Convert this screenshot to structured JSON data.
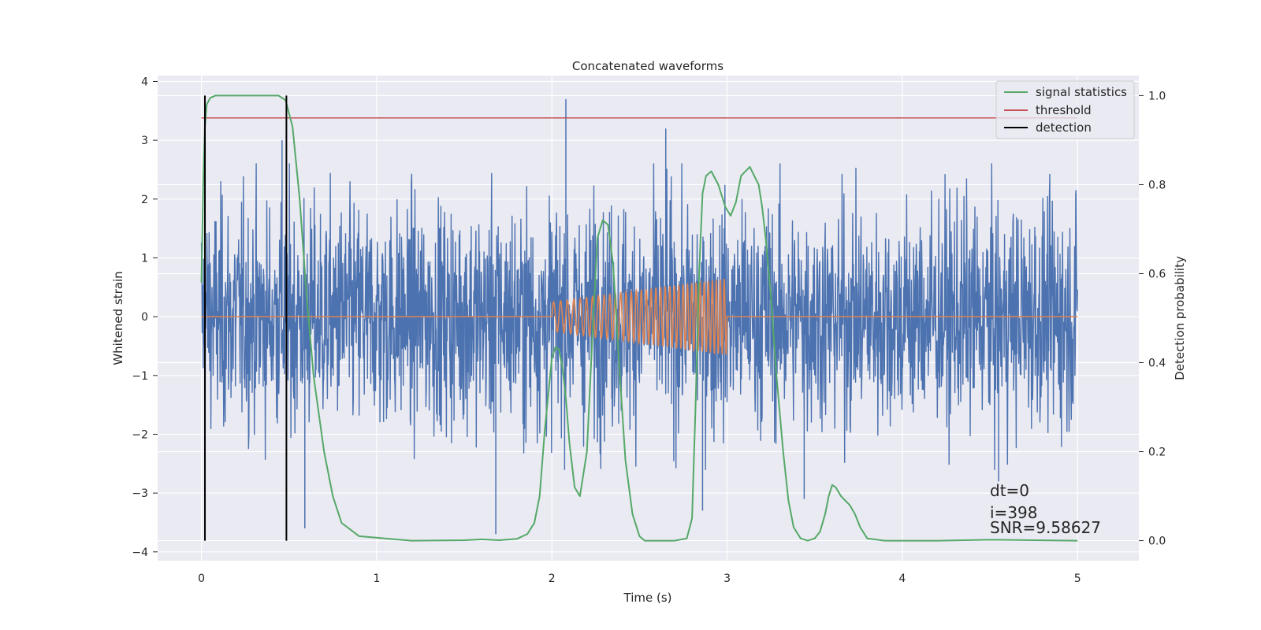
{
  "chart_data": {
    "type": "line",
    "title": "Concatenated waveforms",
    "xlabel": "Time (s)",
    "ylabel": "Whitened strain",
    "y2label": "Detection probability",
    "xlim": [
      -0.25,
      5.35
    ],
    "ylim": [
      -4.15,
      4.1
    ],
    "y2lim": [
      -0.045,
      1.045
    ],
    "xticks": [
      0,
      1,
      2,
      3,
      4,
      5
    ],
    "xtick_labels": [
      "0",
      "1",
      "2",
      "3",
      "4",
      "5"
    ],
    "yticks": [
      -4,
      -3,
      -2,
      -1,
      0,
      1,
      2,
      3,
      4
    ],
    "ytick_labels": [
      "−4",
      "−3",
      "−2",
      "−1",
      "0",
      "1",
      "2",
      "3",
      "4"
    ],
    "y2ticks": [
      0.0,
      0.2,
      0.4,
      0.6,
      0.8,
      1.0
    ],
    "y2tick_labels": [
      "0.0",
      "0.2",
      "0.4",
      "0.6",
      "0.8",
      "1.0"
    ],
    "grid": true,
    "legend_position": "top-right",
    "series": [
      {
        "key": "strain",
        "axis": "left",
        "color": "#4c72b0",
        "description": "whitened noisy strain, roughly Gaussian with std ~0.95, t in [0, 5] s",
        "x_range": [
          0,
          5
        ],
        "noise_std": 0.95,
        "spikes": [
          [
            2.08,
            3.7
          ],
          [
            1.68,
            -3.7
          ],
          [
            0.46,
            3.0
          ],
          [
            2.65,
            3.2
          ],
          [
            0.59,
            -3.6
          ],
          [
            3.44,
            -3.1
          ],
          [
            4.55,
            -2.8
          ],
          [
            2.86,
            -3.3
          ]
        ]
      },
      {
        "key": "injected-signal",
        "axis": "left",
        "color": "#dd8452",
        "description": "chirp injected between 2 s and 3 s",
        "t_start": 2.0,
        "t_end": 3.0,
        "amp_start": 0.25,
        "amp_end": 0.65,
        "cycles": 35,
        "x_range": [
          0,
          5
        ]
      },
      {
        "key": "signal-statistics",
        "name": "signal statistics",
        "axis": "right",
        "color": "#55a868",
        "x": [
          0.0,
          0.01,
          0.02,
          0.03,
          0.05,
          0.08,
          0.12,
          0.3,
          0.44,
          0.48,
          0.52,
          0.56,
          0.6,
          0.64,
          0.7,
          0.75,
          0.8,
          0.9,
          1.2,
          1.5,
          1.6,
          1.7,
          1.8,
          1.86,
          1.9,
          1.93,
          1.96,
          2.0,
          2.02,
          2.04,
          2.06,
          2.08,
          2.1,
          2.13,
          2.16,
          2.2,
          2.23,
          2.26,
          2.29,
          2.32,
          2.35,
          2.38,
          2.42,
          2.46,
          2.5,
          2.53,
          2.56,
          2.6,
          2.7,
          2.77,
          2.8,
          2.82,
          2.84,
          2.86,
          2.88,
          2.91,
          2.95,
          2.99,
          3.02,
          3.05,
          3.08,
          3.13,
          3.18,
          3.2,
          3.22,
          3.25,
          3.28,
          3.32,
          3.35,
          3.38,
          3.42,
          3.46,
          3.5,
          3.53,
          3.56,
          3.58,
          3.6,
          3.62,
          3.65,
          3.7,
          3.73,
          3.76,
          3.8,
          3.9,
          4.2,
          4.5,
          5.0
        ],
        "values": [
          0.58,
          0.8,
          0.93,
          0.98,
          0.995,
          1.0,
          1.0,
          1.0,
          1.0,
          0.99,
          0.93,
          0.77,
          0.55,
          0.37,
          0.2,
          0.1,
          0.04,
          0.01,
          0.0,
          0.001,
          0.003,
          0.001,
          0.004,
          0.015,
          0.04,
          0.1,
          0.25,
          0.41,
          0.435,
          0.43,
          0.39,
          0.32,
          0.22,
          0.12,
          0.1,
          0.2,
          0.45,
          0.68,
          0.72,
          0.71,
          0.62,
          0.42,
          0.18,
          0.06,
          0.01,
          0.0,
          0.0,
          0.0,
          0.0,
          0.005,
          0.05,
          0.3,
          0.6,
          0.78,
          0.82,
          0.83,
          0.8,
          0.75,
          0.73,
          0.76,
          0.82,
          0.84,
          0.8,
          0.75,
          0.68,
          0.55,
          0.38,
          0.2,
          0.09,
          0.03,
          0.005,
          0.0,
          0.005,
          0.02,
          0.06,
          0.1,
          0.125,
          0.12,
          0.1,
          0.08,
          0.06,
          0.03,
          0.005,
          0.0,
          0.0,
          0.002,
          0.0
        ]
      },
      {
        "key": "threshold",
        "name": "threshold",
        "axis": "right",
        "color": "#c44e52",
        "x": [
          0,
          5
        ],
        "values": [
          0.95,
          0.95
        ]
      },
      {
        "key": "detection",
        "name": "detection",
        "axis": "right",
        "color": "#000000",
        "vlines": [
          0.02,
          0.485
        ],
        "y_range": [
          0.0,
          1.0
        ]
      }
    ],
    "legend": [
      "signal statistics",
      "threshold",
      "detection"
    ],
    "annotations": {
      "dt": "dt=0",
      "i": "i=398",
      "snr": "SNR=9.58627"
    }
  }
}
